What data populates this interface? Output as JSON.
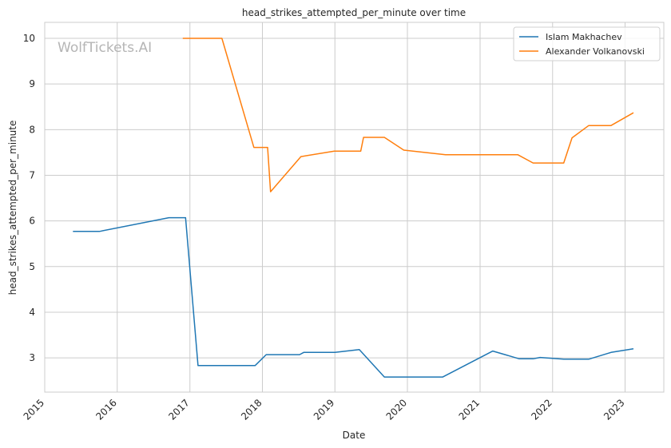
{
  "chart_data": {
    "type": "line",
    "title": "head_strikes_attempted_per_minute over time",
    "xlabel": "Date",
    "ylabel": "head_strikes_attempted_per_minute",
    "watermark": "WolfTickets.AI",
    "x_ticks": [
      "2015",
      "2016",
      "2017",
      "2018",
      "2019",
      "2020",
      "2021",
      "2022",
      "2023"
    ],
    "y_ticks": [
      "3",
      "4",
      "5",
      "6",
      "7",
      "8",
      "9",
      "10"
    ],
    "xlim": [
      "2015-01-01",
      "2023-07-15"
    ],
    "ylim": [
      2.25,
      10.35
    ],
    "grid": true,
    "legend_position": "top-right",
    "series": [
      {
        "name": "Islam Makhachev",
        "color": "#1f77b4",
        "points": [
          [
            "2015-05-23",
            5.77
          ],
          [
            "2015-10-03",
            5.77
          ],
          [
            "2016-09-17",
            6.07
          ],
          [
            "2016-12-10",
            6.07
          ],
          [
            "2017-02-11",
            2.83
          ],
          [
            "2017-11-25",
            2.83
          ],
          [
            "2018-01-20",
            3.07
          ],
          [
            "2018-07-07",
            3.07
          ],
          [
            "2018-07-28",
            3.12
          ],
          [
            "2019-01-01",
            3.12
          ],
          [
            "2019-05-04",
            3.18
          ],
          [
            "2019-09-07",
            2.58
          ],
          [
            "2020-06-27",
            2.58
          ],
          [
            "2021-03-06",
            3.15
          ],
          [
            "2021-07-17",
            2.98
          ],
          [
            "2021-09-25",
            2.98
          ],
          [
            "2021-10-30",
            3.01
          ],
          [
            "2022-02-26",
            2.97
          ],
          [
            "2022-07-02",
            2.97
          ],
          [
            "2022-10-22",
            3.12
          ],
          [
            "2023-02-12",
            3.2
          ]
        ]
      },
      {
        "name": "Alexander Volkanovski",
        "color": "#ff7f0e",
        "points": [
          [
            "2016-11-26",
            10.0
          ],
          [
            "2017-06-11",
            10.0
          ],
          [
            "2017-11-19",
            7.61
          ],
          [
            "2018-01-27",
            7.61
          ],
          [
            "2018-02-11",
            6.64
          ],
          [
            "2018-07-14",
            7.41
          ],
          [
            "2018-12-29",
            7.53
          ],
          [
            "2019-05-11",
            7.53
          ],
          [
            "2019-05-25",
            7.83
          ],
          [
            "2019-09-07",
            7.83
          ],
          [
            "2019-12-14",
            7.55
          ],
          [
            "2020-07-11",
            7.45
          ],
          [
            "2021-07-10",
            7.45
          ],
          [
            "2021-09-25",
            7.27
          ],
          [
            "2022-02-26",
            7.27
          ],
          [
            "2022-04-09",
            7.82
          ],
          [
            "2022-07-02",
            8.09
          ],
          [
            "2022-10-22",
            8.09
          ],
          [
            "2023-02-12",
            8.37
          ]
        ]
      }
    ]
  }
}
